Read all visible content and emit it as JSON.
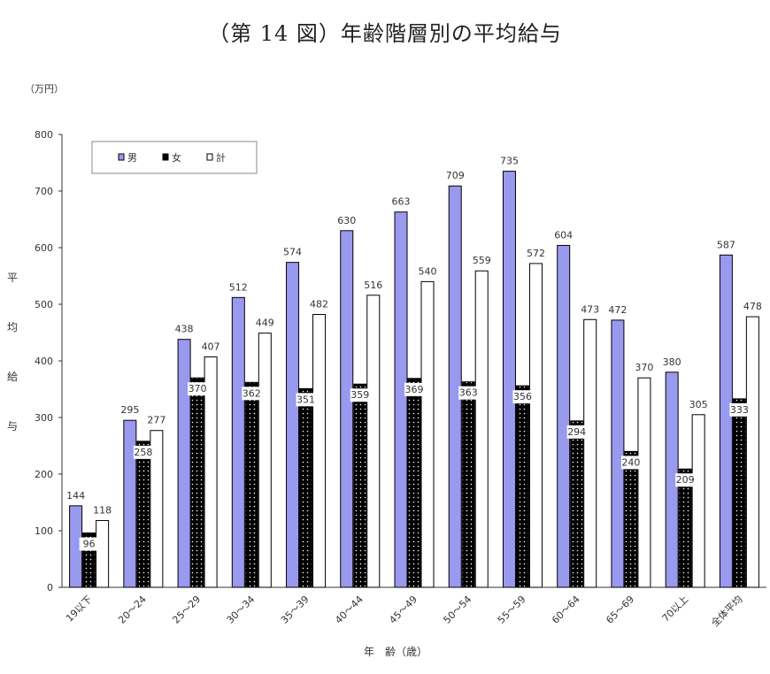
{
  "chart_data": {
    "type": "bar",
    "title": "（第 14 図）年齢階層別の平均給与",
    "unit": "（万円）",
    "xlabel": "年　齢（歳）",
    "ylabel": "平均給与",
    "ylim": [
      0,
      800
    ],
    "yticks": [
      0,
      100,
      200,
      300,
      400,
      500,
      600,
      700,
      800
    ],
    "grid": false,
    "legend_position": "top-left",
    "categories": [
      "19以下",
      "20～24",
      "25～29",
      "30～34",
      "35～39",
      "40～44",
      "45～49",
      "50～54",
      "55～59",
      "60～64",
      "65～69",
      "70以上",
      "全体平均"
    ],
    "series": [
      {
        "name": "男",
        "color": "#9999ee",
        "pattern": "solid",
        "values": [
          144,
          295,
          438,
          512,
          574,
          630,
          663,
          709,
          735,
          604,
          472,
          380,
          587
        ]
      },
      {
        "name": "女",
        "color": "#000000",
        "pattern": "dotted",
        "values": [
          96,
          258,
          370,
          362,
          351,
          359,
          369,
          363,
          356,
          294,
          240,
          209,
          333
        ]
      },
      {
        "name": "計",
        "color": "#ffffff",
        "pattern": "outline",
        "values": [
          118,
          277,
          407,
          449,
          482,
          516,
          540,
          559,
          572,
          473,
          370,
          305,
          478
        ]
      }
    ]
  }
}
